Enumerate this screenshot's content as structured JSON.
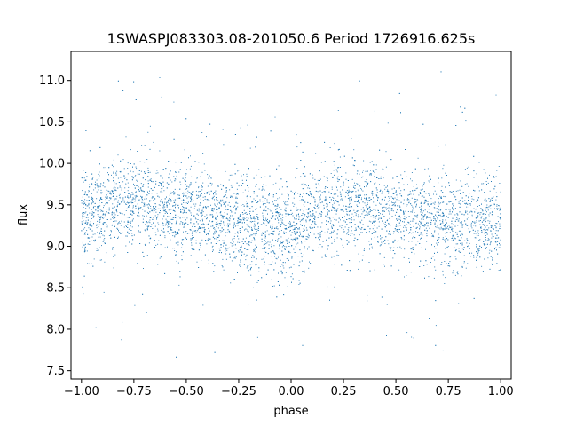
{
  "chart_data": {
    "type": "scatter",
    "title": "1SWASPJ083303.08-201050.6 Period 1726916.625s",
    "xlabel": "phase",
    "ylabel": "flux",
    "xlim": [
      -1.05,
      1.05
    ],
    "ylim": [
      7.4,
      11.35
    ],
    "xticks": [
      -1.0,
      -0.75,
      -0.5,
      -0.25,
      0.0,
      0.25,
      0.5,
      0.75,
      1.0
    ],
    "xtick_labels": [
      "−1.00",
      "−0.75",
      "−0.50",
      "−0.25",
      "0.00",
      "0.25",
      "0.50",
      "0.75",
      "1.00"
    ],
    "yticks": [
      7.5,
      8.0,
      8.5,
      9.0,
      9.5,
      10.0,
      10.5,
      11.0
    ],
    "ytick_labels": [
      "7.5",
      "8.0",
      "8.5",
      "9.0",
      "9.5",
      "10.0",
      "10.5",
      "11.0"
    ],
    "grid": false,
    "legend": false,
    "marker_color": "#1f77b4",
    "series": [
      {
        "x": [
          -1.0,
          -0.9,
          -0.8,
          -0.7,
          -0.6,
          -0.5,
          -0.4,
          -0.3,
          -0.2,
          -0.1,
          0.0,
          0.1,
          0.2,
          0.3,
          0.4,
          0.5,
          0.6,
          0.7,
          0.8,
          0.9,
          1.0
        ],
        "y": [
          9.35,
          9.45,
          9.5,
          9.55,
          9.45,
          9.4,
          9.35,
          9.3,
          9.25,
          9.2,
          9.2,
          9.35,
          9.45,
          9.5,
          9.45,
          9.4,
          9.35,
          9.3,
          9.25,
          9.25,
          9.3
        ],
        "y_spread": 0.4,
        "y_min": 7.6,
        "y_max": 11.25
      }
    ]
  }
}
